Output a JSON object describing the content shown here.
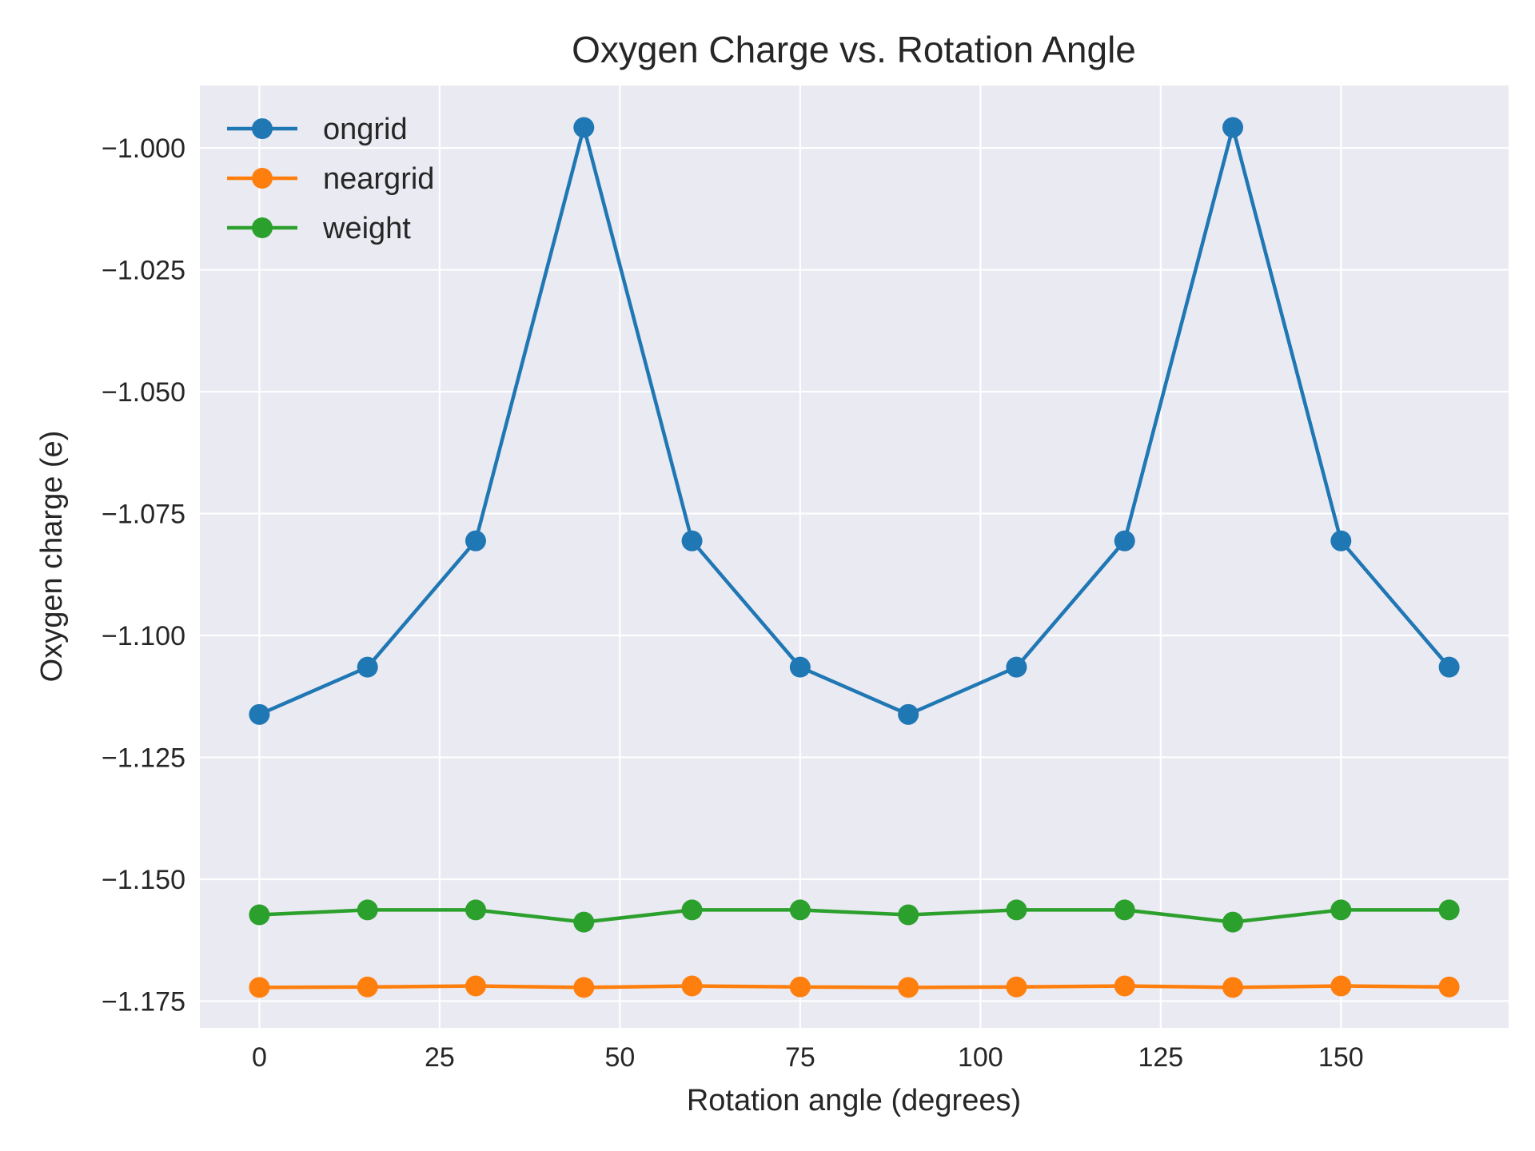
{
  "chart_data": {
    "type": "line",
    "title": "Oxygen Charge vs. Rotation Angle",
    "xlabel": "Rotation angle (degrees)",
    "ylabel": "Oxygen charge (e)",
    "x": [
      0,
      15,
      30,
      45,
      60,
      75,
      90,
      105,
      120,
      135,
      150,
      165
    ],
    "xlim": [
      -8.25,
      173.25
    ],
    "ylim": [
      -1.1805,
      -0.9872
    ],
    "xticks": [
      0,
      25,
      50,
      75,
      100,
      125,
      150
    ],
    "xtick_labels": [
      "0",
      "25",
      "50",
      "75",
      "100",
      "125",
      "150"
    ],
    "yticks": [
      -1.0,
      -1.025,
      -1.05,
      -1.075,
      -1.1,
      -1.125,
      -1.15,
      -1.175
    ],
    "ytick_labels": [
      "−1.000",
      "−1.025",
      "−1.050",
      "−1.075",
      "−1.100",
      "−1.125",
      "−1.150",
      "−1.175"
    ],
    "grid": true,
    "legend_position": "top-left",
    "background": "#eaeaf2",
    "series": [
      {
        "name": "ongrid",
        "color": "#1f77b4",
        "values": [
          -1.1162,
          -1.1065,
          -1.0806,
          -0.9958,
          -1.0806,
          -1.1065,
          -1.1162,
          -1.1065,
          -1.0806,
          -0.9958,
          -1.0806,
          -1.1065
        ]
      },
      {
        "name": "neargrid",
        "color": "#ff7f0e",
        "values": [
          -1.1722,
          -1.1721,
          -1.1719,
          -1.1722,
          -1.1719,
          -1.1721,
          -1.1722,
          -1.1721,
          -1.1719,
          -1.1722,
          -1.1719,
          -1.1721
        ]
      },
      {
        "name": "weight",
        "color": "#2ca02c",
        "values": [
          -1.1573,
          -1.1563,
          -1.1563,
          -1.1588,
          -1.1563,
          -1.1563,
          -1.1573,
          -1.1563,
          -1.1563,
          -1.1588,
          -1.1563,
          -1.1563
        ]
      }
    ]
  }
}
